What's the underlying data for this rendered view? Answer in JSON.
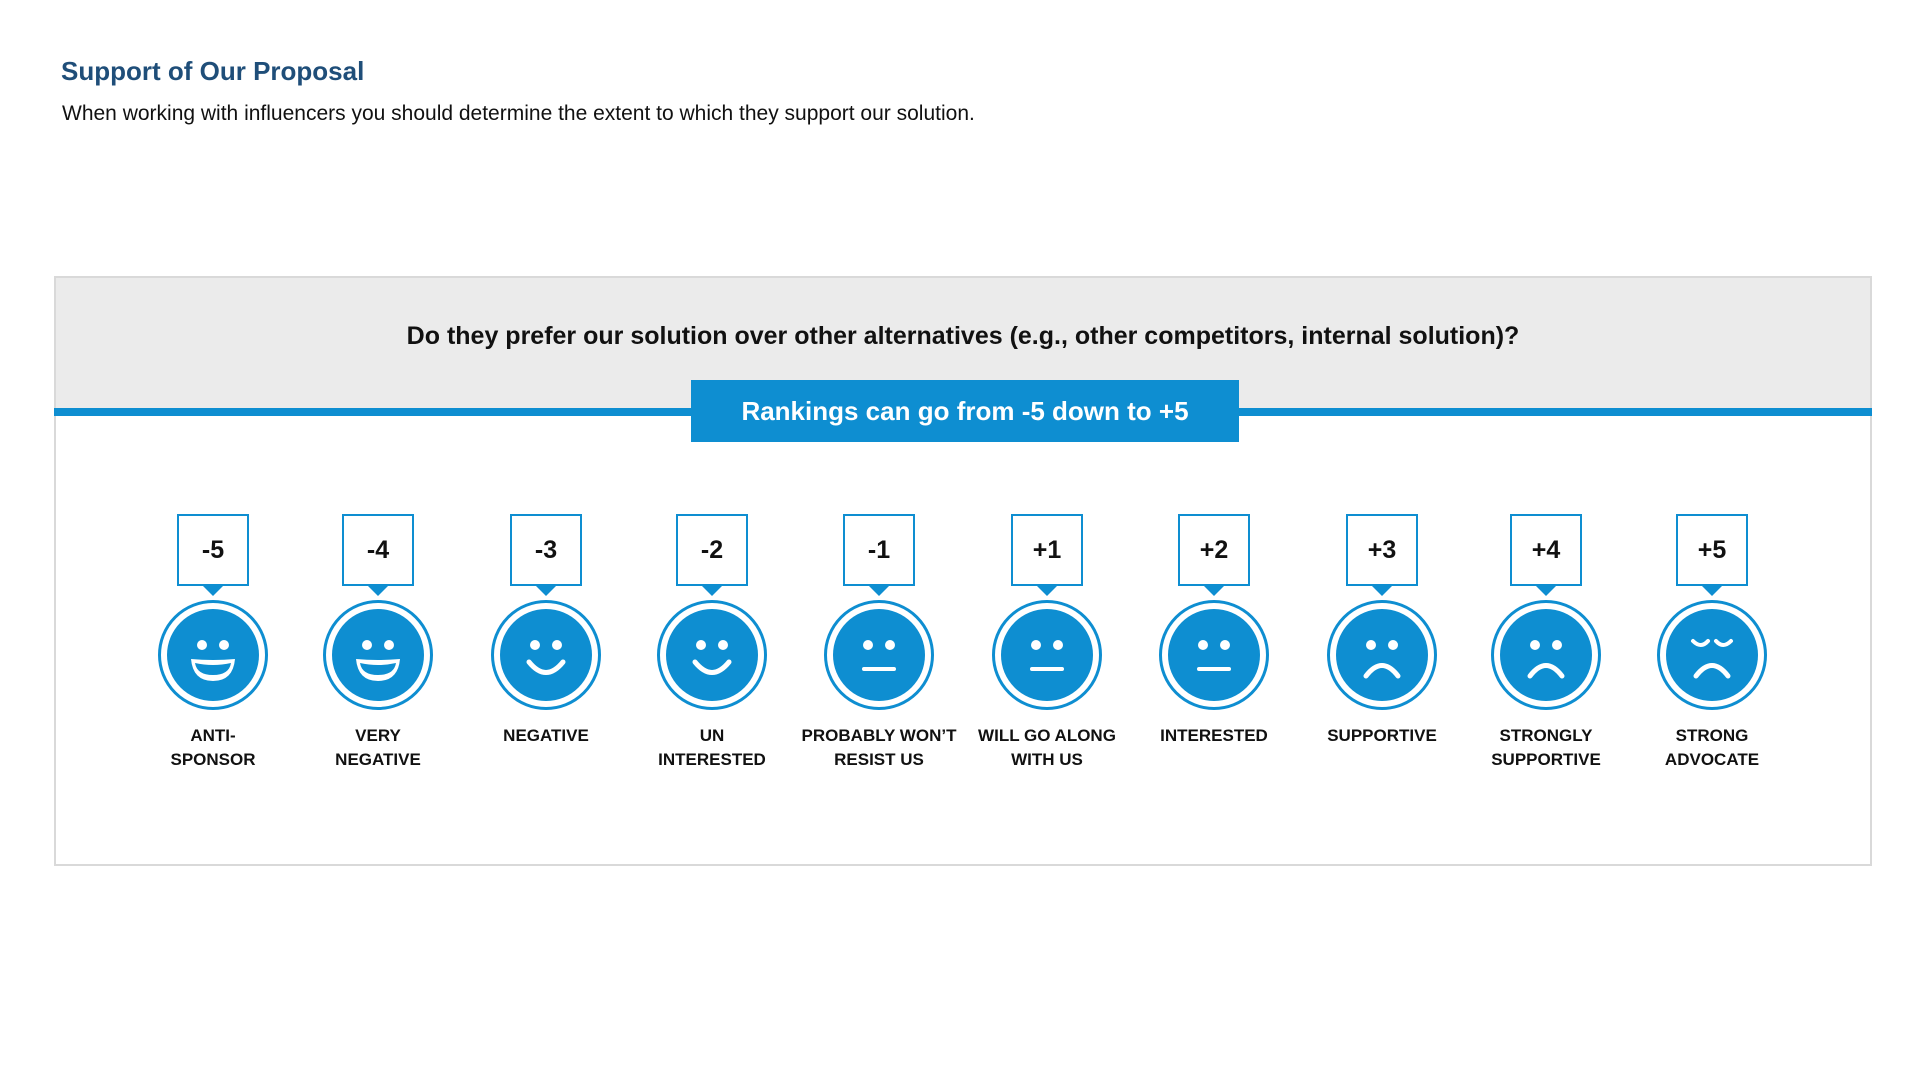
{
  "header": {
    "title": "Support of Our Proposal",
    "subtitle": "When working with influencers you should determine the extent to which they support our solution."
  },
  "panel": {
    "question": "Do they prefer our solution over other alternatives (e.g., other competitors, internal solution)?",
    "banner": "Rankings can go from -5 down to +5"
  },
  "colors": {
    "accent": "#0e8ed1",
    "title": "#1f4e79",
    "panel_head": "#ebebeb"
  },
  "ratings": [
    {
      "score": "-5",
      "line1": "ANTI-",
      "line2": "SPONSOR",
      "icon": "grin-face-icon"
    },
    {
      "score": "-4",
      "line1": "VERY",
      "line2": "NEGATIVE",
      "icon": "grin-face-icon"
    },
    {
      "score": "-3",
      "line1": "NEGATIVE",
      "line2": "",
      "icon": "smile-face-icon"
    },
    {
      "score": "-2",
      "line1": "UN",
      "line2": "INTERESTED",
      "icon": "smile-face-icon"
    },
    {
      "score": "-1",
      "line1": "PROBABLY WON’T",
      "line2": "RESIST US",
      "icon": "neutral-face-icon"
    },
    {
      "score": "+1",
      "line1": "WILL GO ALONG",
      "line2": "WITH US",
      "icon": "neutral-face-icon"
    },
    {
      "score": "+2",
      "line1": "INTERESTED",
      "line2": "",
      "icon": "neutral-face-icon"
    },
    {
      "score": "+3",
      "line1": "SUPPORTIVE",
      "line2": "",
      "icon": "frown-face-icon"
    },
    {
      "score": "+4",
      "line1": "STRONGLY",
      "line2": "SUPPORTIVE",
      "icon": "frown-face-icon"
    },
    {
      "score": "+5",
      "line1": "STRONG",
      "line2": "ADVOCATE",
      "icon": "squint-frown-face-icon"
    }
  ]
}
